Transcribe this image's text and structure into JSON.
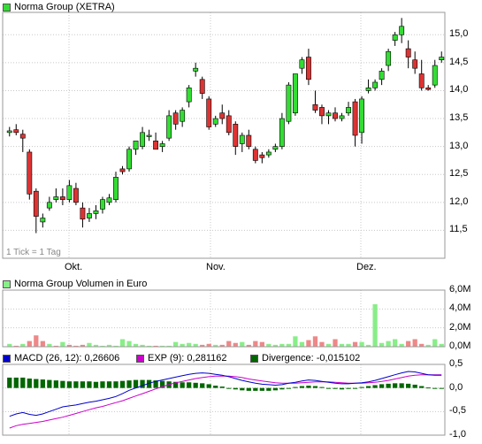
{
  "colors": {
    "up": "#33dd33",
    "down": "#dd3333",
    "grid": "#c8c8c8",
    "volume_up": "#88ee88",
    "volume_down": "#ee8888",
    "volume_neutral": "#bbbbbb",
    "macd": "#0000cc",
    "exp": "#cc00cc",
    "divergence": "#006600"
  },
  "price_panel": {
    "legend_label": "Norma Group (XETRA)",
    "note": "1 Tick = 1 Tag",
    "x_ticks": [
      "Okt.",
      "Nov.",
      "Dez."
    ]
  },
  "volume_panel": {
    "legend_label": "Norma Group Volumen in Euro"
  },
  "macd_panel": {
    "macd_label": "MACD (26, 12): 0,26606",
    "exp_label": "EXP (9): 0,281162",
    "div_label": "Divergence: -0,015102"
  },
  "chart_data": [
    {
      "type": "candlestick",
      "title": "Norma Group (XETRA)",
      "ylim": [
        11.0,
        15.4
      ],
      "y_ticks": [
        "11,5",
        "12,0",
        "12,5",
        "13,0",
        "13,5",
        "14,0",
        "14,5",
        "15,0"
      ],
      "x_ticks": [
        "Okt.",
        "Nov.",
        "Dez."
      ],
      "ohlc": [
        [
          13.25,
          13.35,
          13.18,
          13.28
        ],
        [
          13.3,
          13.4,
          13.2,
          13.25
        ],
        [
          13.22,
          13.3,
          12.9,
          13.15
        ],
        [
          12.9,
          12.95,
          12.05,
          12.15
        ],
        [
          12.2,
          12.25,
          11.45,
          11.75
        ],
        [
          11.65,
          11.8,
          11.55,
          11.72
        ],
        [
          11.9,
          12.1,
          11.85,
          12.0
        ],
        [
          12.05,
          12.25,
          12.0,
          12.1
        ],
        [
          12.1,
          12.25,
          11.95,
          12.05
        ],
        [
          12.05,
          12.4,
          12.0,
          12.3
        ],
        [
          12.25,
          12.35,
          11.95,
          12.0
        ],
        [
          11.9,
          12.0,
          11.55,
          11.7
        ],
        [
          11.72,
          11.9,
          11.65,
          11.8
        ],
        [
          11.8,
          11.95,
          11.7,
          11.85
        ],
        [
          11.88,
          12.1,
          11.8,
          12.05
        ],
        [
          12.0,
          12.15,
          11.95,
          12.08
        ],
        [
          12.05,
          12.55,
          12.0,
          12.45
        ],
        [
          12.6,
          12.65,
          12.5,
          12.55
        ],
        [
          12.6,
          13.0,
          12.55,
          12.95
        ],
        [
          12.95,
          13.1,
          12.85,
          13.1
        ],
        [
          13.0,
          13.35,
          12.95,
          13.25
        ],
        [
          13.2,
          13.3,
          13.1,
          13.2
        ],
        [
          13.1,
          13.25,
          12.95,
          12.95
        ],
        [
          13.0,
          13.1,
          12.9,
          13.05
        ],
        [
          13.15,
          13.65,
          13.1,
          13.55
        ],
        [
          13.6,
          13.65,
          13.3,
          13.4
        ],
        [
          13.45,
          13.7,
          13.35,
          13.65
        ],
        [
          13.8,
          14.1,
          13.7,
          14.05
        ],
        [
          14.35,
          14.5,
          14.25,
          14.4
        ],
        [
          14.2,
          14.25,
          13.85,
          13.95
        ],
        [
          13.85,
          13.9,
          13.3,
          13.35
        ],
        [
          13.4,
          13.55,
          13.35,
          13.5
        ],
        [
          13.6,
          13.75,
          13.4,
          13.5
        ],
        [
          13.55,
          13.65,
          13.2,
          13.25
        ],
        [
          13.4,
          13.45,
          12.85,
          13.0
        ],
        [
          13.05,
          13.25,
          12.9,
          13.2
        ],
        [
          13.2,
          13.3,
          12.95,
          13.0
        ],
        [
          12.95,
          13.0,
          12.7,
          12.75
        ],
        [
          12.85,
          12.9,
          12.7,
          12.8
        ],
        [
          12.85,
          12.95,
          12.8,
          12.9
        ],
        [
          12.95,
          13.05,
          12.9,
          13.0
        ],
        [
          13.0,
          13.6,
          12.95,
          13.5
        ],
        [
          13.45,
          14.15,
          13.4,
          14.1
        ],
        [
          13.6,
          14.3,
          13.55,
          14.3
        ],
        [
          14.4,
          14.6,
          14.3,
          14.55
        ],
        [
          14.6,
          14.75,
          14.1,
          14.2
        ],
        [
          13.75,
          14.0,
          13.6,
          13.65
        ],
        [
          13.7,
          13.75,
          13.4,
          13.55
        ],
        [
          13.55,
          13.65,
          13.4,
          13.6
        ],
        [
          13.6,
          13.7,
          13.45,
          13.5
        ],
        [
          13.5,
          13.6,
          13.45,
          13.55
        ],
        [
          13.6,
          13.8,
          13.55,
          13.7
        ],
        [
          13.8,
          13.85,
          13.0,
          13.2
        ],
        [
          13.25,
          13.9,
          13.05,
          13.85
        ],
        [
          14.0,
          14.2,
          13.95,
          14.05
        ],
        [
          14.05,
          14.2,
          14.0,
          14.15
        ],
        [
          14.2,
          14.4,
          14.1,
          14.35
        ],
        [
          14.45,
          14.75,
          14.35,
          14.7
        ],
        [
          14.9,
          15.05,
          14.8,
          15.0
        ],
        [
          15.0,
          15.3,
          14.85,
          15.15
        ],
        [
          14.75,
          14.9,
          14.4,
          14.6
        ],
        [
          14.55,
          14.7,
          14.3,
          14.4
        ],
        [
          14.3,
          14.55,
          14.0,
          14.05
        ],
        [
          14.05,
          14.1,
          14.0,
          14.02
        ],
        [
          14.1,
          14.55,
          14.05,
          14.45
        ],
        [
          14.55,
          14.7,
          14.5,
          14.6
        ]
      ]
    },
    {
      "type": "bar",
      "title": "Norma Group Volumen in Euro",
      "ylim": [
        0,
        6.0
      ],
      "y_ticks": [
        "0,0M",
        "2,0M",
        "4,0M",
        "6,0M"
      ],
      "values": [
        0.3,
        0.1,
        0.3,
        0.6,
        1.2,
        0.6,
        0.3,
        0.1,
        0.5,
        0.2,
        0.1,
        0.2,
        0.4,
        0.2,
        0.1,
        0.2,
        0.1,
        0.8,
        0.6,
        0.3,
        0.2,
        0.1,
        0.1,
        0.1,
        0.1,
        0.5,
        0.3,
        0.4,
        0.3,
        0.2,
        0.3,
        0.2,
        0.2,
        0.6,
        0.4,
        0.5,
        0.2,
        0.6,
        0.5,
        0.3,
        0.2,
        0.3,
        0.3,
        1.1,
        0.5,
        0.7,
        1.1,
        0.5,
        0.3,
        0.8,
        0.3,
        0.3,
        0.5,
        0.5,
        0.2,
        4.5,
        0.4,
        0.6,
        0.8,
        0.3,
        0.6,
        0.8,
        0.3,
        0.2,
        0.8,
        0.3
      ],
      "colors": [
        "u",
        "d",
        "u",
        "d",
        "d",
        "d",
        "u",
        "d",
        "u",
        "d",
        "d",
        "d",
        "u",
        "u",
        "u",
        "u",
        "u",
        "u",
        "u",
        "u",
        "u",
        "u",
        "d",
        "u",
        "u",
        "u",
        "u",
        "u",
        "u",
        "d",
        "d",
        "u",
        "d",
        "d",
        "d",
        "u",
        "d",
        "d",
        "d",
        "u",
        "u",
        "u",
        "u",
        "u",
        "u",
        "d",
        "d",
        "d",
        "u",
        "d",
        "u",
        "u",
        "d",
        "u",
        "u",
        "u",
        "u",
        "u",
        "u",
        "u",
        "d",
        "d",
        "d",
        "u",
        "u",
        "u"
      ]
    },
    {
      "type": "macd",
      "ylim": [
        -1.0,
        0.5
      ],
      "y_ticks": [
        "0,5",
        "0,0",
        "-0,5",
        "-1,0"
      ],
      "macd": [
        -0.6,
        -0.55,
        -0.52,
        -0.56,
        -0.58,
        -0.55,
        -0.5,
        -0.45,
        -0.4,
        -0.38,
        -0.36,
        -0.33,
        -0.3,
        -0.28,
        -0.25,
        -0.22,
        -0.18,
        -0.12,
        -0.05,
        0.0,
        0.05,
        0.1,
        0.14,
        0.17,
        0.2,
        0.23,
        0.26,
        0.29,
        0.31,
        0.32,
        0.31,
        0.29,
        0.27,
        0.24,
        0.2,
        0.16,
        0.13,
        0.1,
        0.08,
        0.07,
        0.06,
        0.07,
        0.1,
        0.12,
        0.15,
        0.17,
        0.16,
        0.14,
        0.12,
        0.1,
        0.09,
        0.09,
        0.1,
        0.11,
        0.13,
        0.16,
        0.2,
        0.24,
        0.28,
        0.32,
        0.35,
        0.34,
        0.31,
        0.28,
        0.27,
        0.27
      ],
      "exp": [
        -0.85,
        -0.8,
        -0.77,
        -0.75,
        -0.73,
        -0.71,
        -0.68,
        -0.65,
        -0.62,
        -0.58,
        -0.54,
        -0.5,
        -0.46,
        -0.42,
        -0.39,
        -0.35,
        -0.31,
        -0.27,
        -0.22,
        -0.17,
        -0.12,
        -0.07,
        -0.02,
        0.03,
        0.07,
        0.11,
        0.14,
        0.17,
        0.2,
        0.22,
        0.24,
        0.25,
        0.25,
        0.25,
        0.24,
        0.22,
        0.19,
        0.17,
        0.15,
        0.13,
        0.11,
        0.1,
        0.1,
        0.1,
        0.11,
        0.12,
        0.13,
        0.13,
        0.13,
        0.12,
        0.11,
        0.1,
        0.1,
        0.1,
        0.11,
        0.12,
        0.14,
        0.16,
        0.19,
        0.22,
        0.25,
        0.27,
        0.28,
        0.28,
        0.28,
        0.28
      ],
      "divergence": [
        0.22,
        0.22,
        0.22,
        0.2,
        0.19,
        0.18,
        0.17,
        0.16,
        0.15,
        0.14,
        0.14,
        0.14,
        0.14,
        0.13,
        0.14,
        0.14,
        0.14,
        0.15,
        0.16,
        0.17,
        0.17,
        0.17,
        0.16,
        0.15,
        0.14,
        0.13,
        0.12,
        0.12,
        0.11,
        0.1,
        0.08,
        0.05,
        0.03,
        0.0,
        -0.03,
        -0.05,
        -0.06,
        -0.06,
        -0.06,
        -0.06,
        -0.05,
        -0.03,
        0.0,
        0.02,
        0.04,
        0.05,
        0.04,
        0.02,
        0.0,
        -0.02,
        -0.03,
        -0.02,
        0.0,
        0.02,
        0.04,
        0.06,
        0.08,
        0.09,
        0.1,
        0.1,
        0.09,
        0.07,
        0.04,
        0.01,
        -0.01,
        -0.015
      ]
    }
  ]
}
